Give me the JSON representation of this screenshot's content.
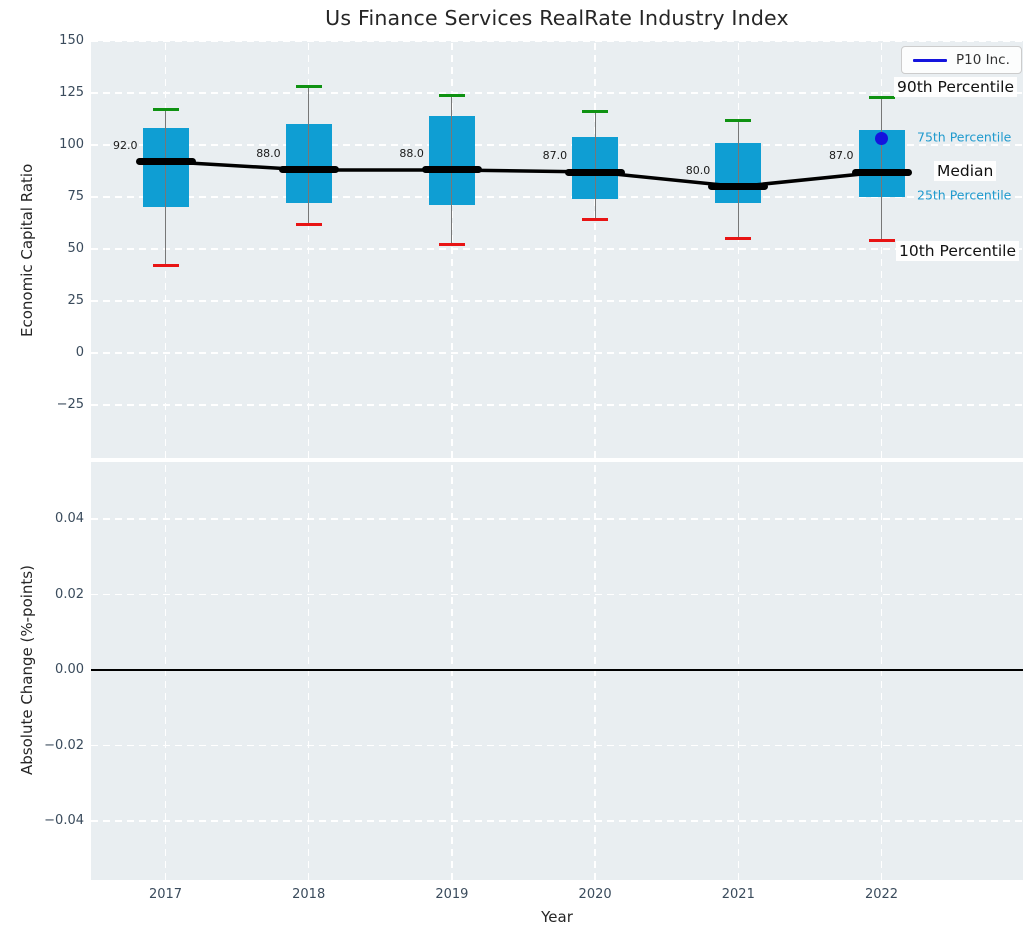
{
  "title": "Us Finance Services RealRate Industry Index",
  "legend": {
    "label": "P10 Inc."
  },
  "annotations": {
    "p90_label": "90th Percentile",
    "p75_label": "75th Percentile",
    "median_label": "Median",
    "p25_label": "25th Percentile",
    "p10_label": "10th Percentile"
  },
  "colors": {
    "box_fill": "#0f9ed3",
    "whisker": "#777777",
    "p90_cap": "#0f9212",
    "p10_cap": "#e81414",
    "median": "#000000",
    "p10inc_blue": "#1414dd",
    "axes_bg": "#e9eef1",
    "grid": "#ffffff",
    "tick_text": "#3a4b5c",
    "percentile_blue_text": "#1f9ace"
  },
  "chart_data": [
    {
      "type": "boxplot",
      "title": "Us Finance Services RealRate Industry Index",
      "ylabel": "Economic Capital Ratio",
      "xlabel": "",
      "categories": [
        "2017",
        "2018",
        "2019",
        "2020",
        "2021",
        "2022"
      ],
      "yticks": [
        150,
        125,
        100,
        75,
        50,
        25,
        0,
        -25
      ],
      "ytick_labels": [
        "150",
        "125",
        "100",
        "75",
        "50",
        "25",
        "0",
        "−25"
      ],
      "ylim": [
        -50,
        150
      ],
      "grid": "white-dashed",
      "legend_position": "upper right",
      "series": [
        {
          "name": "90th Percentile",
          "values": [
            117,
            128,
            124,
            116,
            112,
            123
          ]
        },
        {
          "name": "75th Percentile",
          "values": [
            108,
            110,
            114,
            104,
            101,
            107
          ]
        },
        {
          "name": "Median",
          "values": [
            92,
            88,
            88,
            87,
            80,
            87
          ]
        },
        {
          "name": "25th Percentile",
          "values": [
            70,
            72,
            71,
            74,
            72,
            75
          ]
        },
        {
          "name": "10th Percentile",
          "values": [
            42,
            62,
            52,
            64,
            55,
            54
          ]
        },
        {
          "name": "P10 Inc.",
          "values": [
            null,
            null,
            null,
            null,
            null,
            103
          ]
        }
      ],
      "median_labels": [
        "92.0",
        "88.0",
        "88.0",
        "87.0",
        "80.0",
        "87.0"
      ]
    },
    {
      "type": "line",
      "ylabel": "Absolute Change (%-points)",
      "xlabel": "Year",
      "categories": [
        "2017",
        "2018",
        "2019",
        "2020",
        "2021",
        "2022"
      ],
      "yticks": [
        0.04,
        0.02,
        0.0,
        -0.02,
        -0.04
      ],
      "ytick_labels": [
        "0.04",
        "0.02",
        "0.00",
        "−0.02",
        "−0.04"
      ],
      "ylim": [
        -0.055,
        0.055
      ],
      "zero_line": 0.0,
      "series": []
    }
  ]
}
